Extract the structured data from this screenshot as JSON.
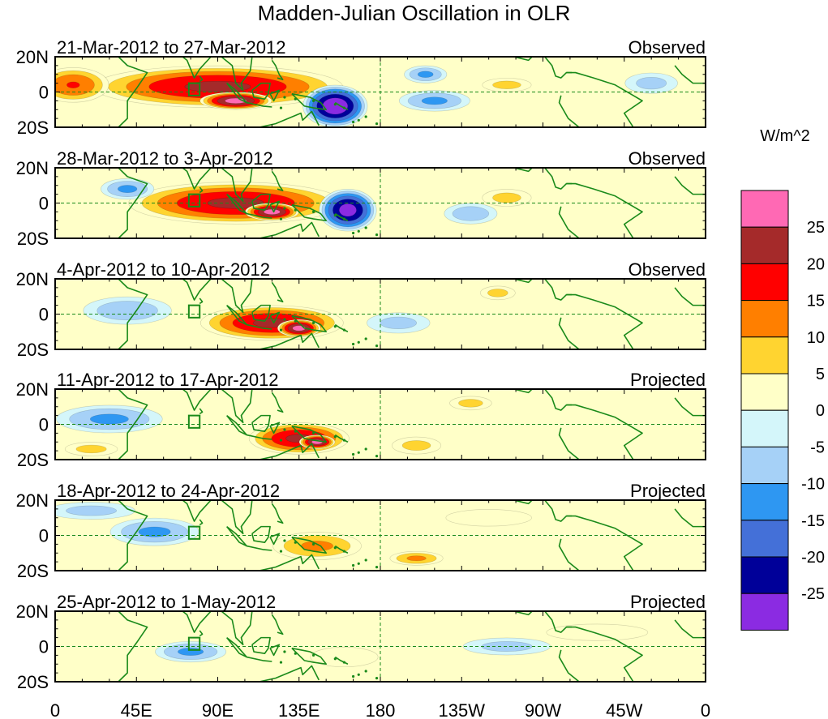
{
  "title": "Madden-Julian Oscillation in OLR",
  "colors": {
    "land_outline": "#1a8a1a",
    "frame": "#000000",
    "reference_line": "#1a8a1a"
  },
  "chart_data": {
    "type": "heatmap",
    "variable": "OLR anomaly",
    "x_axis": {
      "range": [
        0,
        360
      ],
      "ticks": [
        "0",
        "45E",
        "90E",
        "135E",
        "180",
        "135W",
        "90W",
        "45W",
        "0"
      ]
    },
    "y_axis": {
      "range": [
        -20,
        20
      ],
      "ticks": [
        "20N",
        "0",
        "20S"
      ]
    },
    "colorbar": {
      "unit": "W/m^2",
      "placement": "right",
      "levels": [
        "25",
        "20",
        "15",
        "10",
        "5",
        "0",
        "-5",
        "-10",
        "-15",
        "-20",
        "-25"
      ],
      "colors": [
        "#ff69b4",
        "#a52a2a",
        "#ff0000",
        "#ff7f00",
        "#ffd430",
        "#ffffc8",
        "#d4f6fa",
        "#a6d1f7",
        "#2e97f2",
        "#4470d8",
        "#000099",
        "#8b2be2"
      ]
    },
    "panels": [
      {
        "date_range": "21-Mar-2012 to 27-Mar-2012",
        "status": "Observed",
        "features": [
          {
            "lon": 90,
            "lat": 3,
            "rx": 70,
            "ry": 12,
            "value": 22
          },
          {
            "lon": 100,
            "lat": -5,
            "rx": 20,
            "ry": 5,
            "value": 28
          },
          {
            "lon": 10,
            "lat": 4,
            "rx": 20,
            "ry": 10,
            "value": 16
          },
          {
            "lon": 155,
            "lat": -8,
            "rx": 18,
            "ry": 12,
            "value": -30
          },
          {
            "lon": 210,
            "lat": -5,
            "rx": 20,
            "ry": 6,
            "value": -12
          },
          {
            "lon": 205,
            "lat": 10,
            "rx": 12,
            "ry": 5,
            "value": -12
          },
          {
            "lon": 250,
            "lat": 4,
            "rx": 14,
            "ry": 4,
            "value": 8
          },
          {
            "lon": 330,
            "lat": 5,
            "rx": 15,
            "ry": 6,
            "value": -8
          }
        ]
      },
      {
        "date_range": "28-Mar-2012 to 3-Apr-2012",
        "status": "Observed",
        "features": [
          {
            "lon": 100,
            "lat": 0,
            "rx": 60,
            "ry": 12,
            "value": 22
          },
          {
            "lon": 120,
            "lat": -5,
            "rx": 15,
            "ry": 5,
            "value": 28
          },
          {
            "lon": 162,
            "lat": -4,
            "rx": 16,
            "ry": 12,
            "value": -28
          },
          {
            "lon": 40,
            "lat": 8,
            "rx": 15,
            "ry": 6,
            "value": -12
          },
          {
            "lon": 230,
            "lat": -6,
            "rx": 15,
            "ry": 6,
            "value": -10
          },
          {
            "lon": 250,
            "lat": 3,
            "rx": 14,
            "ry": 5,
            "value": 8
          }
        ]
      },
      {
        "date_range": "4-Apr-2012 to 10-Apr-2012",
        "status": "Observed",
        "features": [
          {
            "lon": 120,
            "lat": -5,
            "rx": 40,
            "ry": 10,
            "value": 22
          },
          {
            "lon": 135,
            "lat": -8,
            "rx": 12,
            "ry": 5,
            "value": 28
          },
          {
            "lon": 40,
            "lat": 2,
            "rx": 25,
            "ry": 8,
            "value": -10
          },
          {
            "lon": 245,
            "lat": 12,
            "rx": 10,
            "ry": 4,
            "value": 8
          },
          {
            "lon": 190,
            "lat": -5,
            "rx": 18,
            "ry": 6,
            "value": -8
          }
        ]
      },
      {
        "date_range": "11-Apr-2012 to 17-Apr-2012",
        "status": "Projected",
        "features": [
          {
            "lon": 135,
            "lat": -8,
            "rx": 28,
            "ry": 9,
            "value": 22
          },
          {
            "lon": 145,
            "lat": -10,
            "rx": 10,
            "ry": 4,
            "value": 28
          },
          {
            "lon": 30,
            "lat": 3,
            "rx": 30,
            "ry": 8,
            "value": -12
          },
          {
            "lon": 230,
            "lat": 12,
            "rx": 12,
            "ry": 4,
            "value": 8
          },
          {
            "lon": 200,
            "lat": -12,
            "rx": 14,
            "ry": 5,
            "value": 8
          },
          {
            "lon": 20,
            "lat": -14,
            "rx": 15,
            "ry": 4,
            "value": 8
          }
        ]
      },
      {
        "date_range": "18-Apr-2012 to 24-Apr-2012",
        "status": "Projected",
        "features": [
          {
            "lon": 145,
            "lat": -6,
            "rx": 25,
            "ry": 8,
            "value": 12
          },
          {
            "lon": 200,
            "lat": -13,
            "rx": 15,
            "ry": 4,
            "value": 12
          },
          {
            "lon": 55,
            "lat": 2,
            "rx": 25,
            "ry": 8,
            "value": -12
          },
          {
            "lon": 240,
            "lat": 10,
            "rx": 25,
            "ry": 5,
            "value": 5
          },
          {
            "lon": 20,
            "lat": 14,
            "rx": 25,
            "ry": 5,
            "value": -8
          }
        ]
      },
      {
        "date_range": "25-Apr-2012 to 1-May-2012",
        "status": "Projected",
        "features": [
          {
            "lon": 75,
            "lat": -3,
            "rx": 20,
            "ry": 6,
            "value": -12
          },
          {
            "lon": 160,
            "lat": -6,
            "rx": 20,
            "ry": 6,
            "value": 4
          },
          {
            "lon": 250,
            "lat": 0,
            "rx": 25,
            "ry": 5,
            "value": -8
          },
          {
            "lon": 300,
            "lat": 8,
            "rx": 30,
            "ry": 5,
            "value": 4
          }
        ]
      }
    ]
  }
}
